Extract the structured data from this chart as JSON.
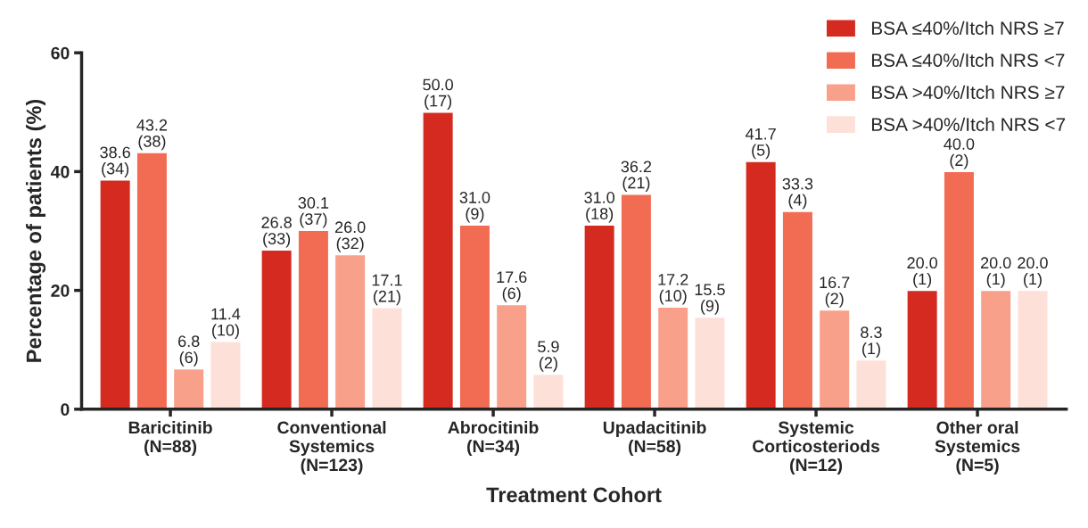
{
  "chart_data": {
    "type": "bar",
    "xlabel": "Treatment Cohort",
    "ylabel": "Percentage of patients (%)",
    "categories": [
      "Baricitinib\n(N=88)",
      "Conventional\nSystemics\n(N=123)",
      "Abrocitinib\n(N=34)",
      "Upadacitinib\n(N=58)",
      "Systemic\nCorticosteriods\n(N=12)",
      "Other oral\nSystemics\n(N=5)"
    ],
    "series": [
      {
        "name": "BSA ≤40%/Itch NRS ≥7",
        "color": "#d42a20",
        "values": [
          38.6,
          26.8,
          50.0,
          31.0,
          41.7,
          20.0
        ],
        "value_labels": [
          "38.6\n(34)",
          "26.8\n(33)",
          "50.0\n(17)",
          "31.0\n(18)",
          "41.7\n(5)",
          "20.0\n(1)"
        ]
      },
      {
        "name": "BSA ≤40%/Itch NRS <7",
        "color": "#f26b53",
        "values": [
          43.2,
          30.1,
          31.0,
          36.2,
          33.3,
          40.0
        ],
        "value_labels": [
          "43.2\n(38)",
          "30.1\n(37)",
          "31.0\n(9)",
          "36.2\n(21)",
          "33.3\n(4)",
          "40.0\n(2)"
        ]
      },
      {
        "name": "BSA >40%/Itch NRS ≥7",
        "color": "#f9a08a",
        "values": [
          6.8,
          26.0,
          17.6,
          17.2,
          16.7,
          20.0
        ],
        "value_labels": [
          "6.8\n(6)",
          "26.0\n(32)",
          "17.6\n(6)",
          "17.2\n(10)",
          "16.7\n(2)",
          "20.0\n(1)"
        ]
      },
      {
        "name": "BSA >40%/Itch NRS <7",
        "color": "#fde0d8",
        "values": [
          11.4,
          17.1,
          5.9,
          15.5,
          8.3,
          20.0
        ],
        "value_labels": [
          "11.4\n(10)",
          "17.1\n(21)",
          "5.9\n(2)",
          "15.5\n(9)",
          "8.3\n(1)",
          "20.0\n(1)"
        ]
      }
    ],
    "ylim": [
      0,
      60
    ],
    "yticks": [
      0,
      20,
      40,
      60
    ],
    "grid": false,
    "legend": "top right"
  }
}
